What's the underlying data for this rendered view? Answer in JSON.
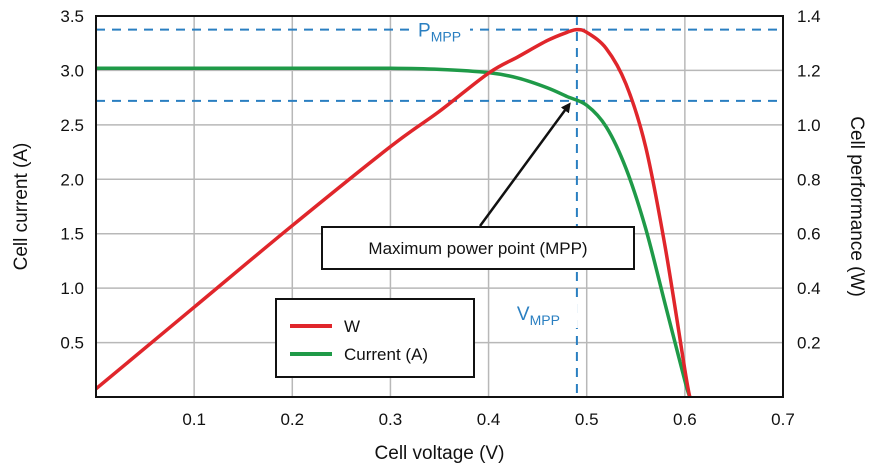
{
  "chart_data": {
    "type": "line",
    "title": "",
    "xlabel": "Cell voltage (V)",
    "ylabel_left": "Cell current (A)",
    "ylabel_right": "Cell performance (W)",
    "xlim": [
      0,
      0.7
    ],
    "ylim_left": [
      0,
      3.5
    ],
    "ylim_right": [
      0,
      1.4
    ],
    "x_ticks": [
      0.1,
      0.2,
      0.3,
      0.4,
      0.5,
      0.6,
      0.7
    ],
    "y_left_ticks": [
      0.5,
      1.0,
      1.5,
      2.0,
      2.5,
      3.0,
      3.5
    ],
    "y_right_ticks": [
      0.2,
      0.4,
      0.6,
      0.8,
      1.0,
      1.2,
      1.4
    ],
    "x_tick_labels": [
      "0.1",
      "0.2",
      "0.3",
      "0.4",
      "0.5",
      "0.6",
      "0.7"
    ],
    "y_left_tick_labels": [
      "0.5",
      "1.0",
      "1.5",
      "2.0",
      "2.5",
      "3.0",
      "3.5"
    ],
    "y_right_tick_labels": [
      "0.2",
      "0.4",
      "0.6",
      "0.8",
      "1.0",
      "1.2",
      "1.4"
    ],
    "grid": true,
    "legend_position": "bottom-left",
    "series": [
      {
        "name": "W",
        "axis": "right",
        "color": "#e0262b",
        "x": [
          0.0,
          0.1,
          0.2,
          0.3,
          0.35,
          0.4,
          0.43,
          0.46,
          0.48,
          0.49,
          0.5,
          0.52,
          0.54,
          0.56,
          0.58,
          0.6,
          0.605
        ],
        "y": [
          0.03,
          0.33,
          0.63,
          0.92,
          1.05,
          1.19,
          1.25,
          1.31,
          1.34,
          1.35,
          1.34,
          1.28,
          1.15,
          0.92,
          0.55,
          0.1,
          0.0
        ]
      },
      {
        "name": "Current (A)",
        "axis": "left",
        "color": "#1f9a48",
        "x": [
          0.0,
          0.1,
          0.2,
          0.3,
          0.35,
          0.4,
          0.43,
          0.46,
          0.48,
          0.5,
          0.52,
          0.54,
          0.56,
          0.58,
          0.6,
          0.605
        ],
        "y": [
          3.02,
          3.02,
          3.02,
          3.02,
          3.01,
          2.98,
          2.93,
          2.84,
          2.76,
          2.68,
          2.48,
          2.1,
          1.55,
          0.85,
          0.15,
          0.0
        ]
      }
    ],
    "reference_lines": [
      {
        "orientation": "horizontal",
        "axis": "right",
        "value": 1.35,
        "label": "P",
        "label_subscript": "MPP",
        "color": "#2a7fc1",
        "style": "dashed"
      },
      {
        "orientation": "horizontal",
        "axis": "left",
        "value": 2.72,
        "color": "#2a7fc1",
        "style": "dashed"
      },
      {
        "orientation": "vertical",
        "value": 0.49,
        "label": "V",
        "label_subscript": "MPP",
        "color": "#2a7fc1",
        "style": "dashed"
      }
    ],
    "annotations": [
      {
        "text": "Maximum power point (MPP)",
        "points_to": {
          "x": 0.485,
          "y_left": 2.74
        }
      }
    ]
  }
}
